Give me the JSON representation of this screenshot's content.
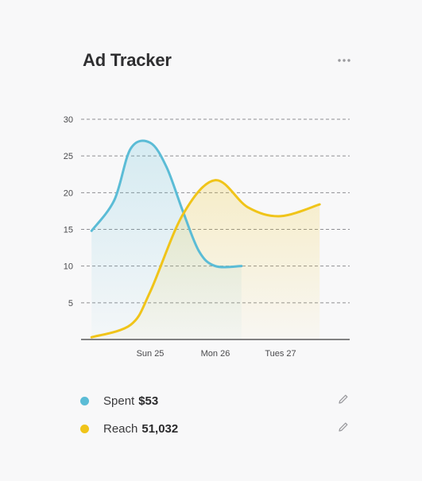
{
  "header": {
    "title": "Ad Tracker",
    "more_icon": "more-horizontal-icon"
  },
  "chart_data": {
    "type": "area",
    "title": "Ad Tracker",
    "xlabel": "",
    "ylabel": "",
    "x_ticks": [
      "Sun 25",
      "Mon 26",
      "Tues 27"
    ],
    "y_ticks": [
      5,
      10,
      15,
      20,
      25,
      30
    ],
    "ylim": [
      0,
      30
    ],
    "grid": true,
    "legend_position": "bottom",
    "series": [
      {
        "name": "Spent",
        "color": "#5bbcd6",
        "points": [
          {
            "x": -0.9,
            "y": 14.8
          },
          {
            "x": -0.55,
            "y": 19
          },
          {
            "x": -0.3,
            "y": 26
          },
          {
            "x": 0,
            "y": 26.8
          },
          {
            "x": 0.25,
            "y": 23.5
          },
          {
            "x": 0.5,
            "y": 17.5
          },
          {
            "x": 0.75,
            "y": 12
          },
          {
            "x": 1,
            "y": 10
          },
          {
            "x": 1.4,
            "y": 10
          }
        ]
      },
      {
        "name": "Reach",
        "color": "#f0c419",
        "points": [
          {
            "x": -0.9,
            "y": 0.3
          },
          {
            "x": -0.3,
            "y": 2
          },
          {
            "x": 0,
            "y": 6.5
          },
          {
            "x": 0.5,
            "y": 17
          },
          {
            "x": 1,
            "y": 21.7
          },
          {
            "x": 1.5,
            "y": 18
          },
          {
            "x": 2,
            "y": 16.8
          },
          {
            "x": 2.6,
            "y": 18.4
          }
        ]
      }
    ]
  },
  "legend": [
    {
      "label": "Spent",
      "value": "$53",
      "color": "#5bbcd6",
      "edit_icon": "pencil-icon"
    },
    {
      "label": "Reach",
      "value": "51,032",
      "color": "#f0c419",
      "edit_icon": "pencil-icon"
    }
  ]
}
